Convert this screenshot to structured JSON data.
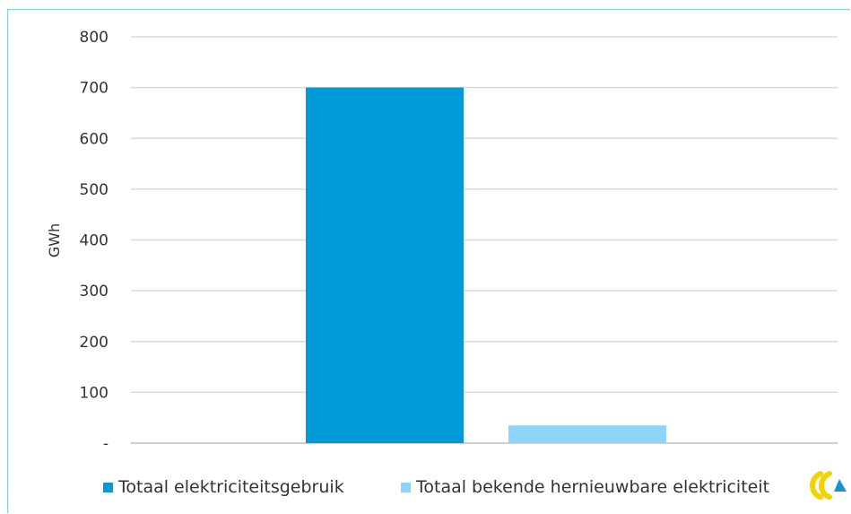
{
  "chart_data": {
    "type": "bar",
    "categories": [
      "Totaal elektriciteitsgebruik",
      "Totaal bekende hernieuwbare elektriciteit"
    ],
    "values": [
      700,
      35
    ],
    "ylabel": "GWh",
    "ylim": [
      0,
      800
    ],
    "yticks": [
      0,
      100,
      200,
      300,
      400,
      500,
      600,
      700,
      800
    ],
    "ytick_labels": [
      "-",
      "100",
      "200",
      "300",
      "400",
      "500",
      "600",
      "700",
      "800"
    ],
    "grid": true,
    "legend_position": "bottom",
    "colors": [
      "#009ad8",
      "#8fd3f8"
    ],
    "legend": [
      "Totaal elektriciteitsgebruik",
      "Totaal bekende hernieuwbare elektriciteit"
    ]
  },
  "logo": {
    "name": "company-logo",
    "colors": [
      "#f2d300",
      "#1a8fd6"
    ]
  }
}
